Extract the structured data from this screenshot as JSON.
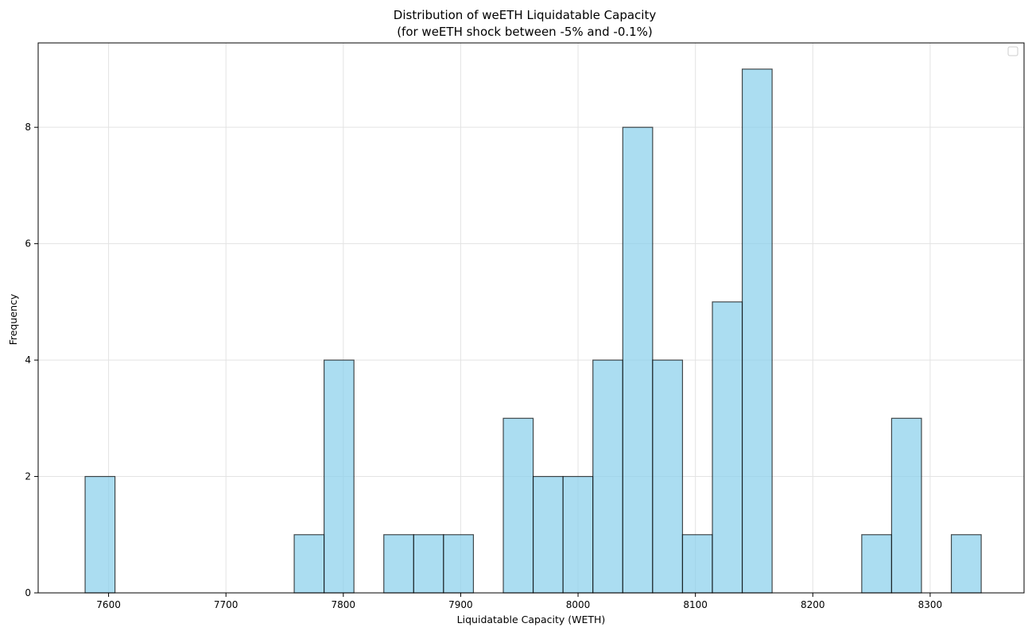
{
  "chart_data": {
    "type": "bar",
    "title": "Distribution of weETH Liquidatable Capacity",
    "subtitle": "(for weETH shock between -5% and -0.1%)",
    "xlabel": "Liquidatable Capacity (WETH)",
    "ylabel": "Frequency",
    "xlim": [
      7540,
      8380
    ],
    "ylim": [
      0,
      9.45
    ],
    "xticks": [
      7600,
      7700,
      7800,
      7900,
      8000,
      8100,
      8200,
      8300
    ],
    "yticks": [
      0,
      2,
      4,
      6,
      8
    ],
    "grid": true,
    "legend": "top-right",
    "bin_width": 25.45,
    "bins": [
      {
        "start": 7580.0,
        "count": 2
      },
      {
        "start": 7605.45,
        "count": 0
      },
      {
        "start": 7630.9,
        "count": 0
      },
      {
        "start": 7656.35,
        "count": 0
      },
      {
        "start": 7681.8,
        "count": 0
      },
      {
        "start": 7707.25,
        "count": 0
      },
      {
        "start": 7732.7,
        "count": 0
      },
      {
        "start": 7758.15,
        "count": 1
      },
      {
        "start": 7783.6,
        "count": 4
      },
      {
        "start": 7809.05,
        "count": 0
      },
      {
        "start": 7834.5,
        "count": 1
      },
      {
        "start": 7859.95,
        "count": 1
      },
      {
        "start": 7885.4,
        "count": 1
      },
      {
        "start": 7910.85,
        "count": 0
      },
      {
        "start": 7936.3,
        "count": 3
      },
      {
        "start": 7961.75,
        "count": 2
      },
      {
        "start": 7987.2,
        "count": 2
      },
      {
        "start": 8012.65,
        "count": 4
      },
      {
        "start": 8038.1,
        "count": 8
      },
      {
        "start": 8063.55,
        "count": 4
      },
      {
        "start": 8089.0,
        "count": 1
      },
      {
        "start": 8114.45,
        "count": 5
      },
      {
        "start": 8139.9,
        "count": 9
      },
      {
        "start": 8165.35,
        "count": 0
      },
      {
        "start": 8190.8,
        "count": 0
      },
      {
        "start": 8216.25,
        "count": 0
      },
      {
        "start": 8241.7,
        "count": 1
      },
      {
        "start": 8267.15,
        "count": 3
      },
      {
        "start": 8292.6,
        "count": 0
      },
      {
        "start": 8318.05,
        "count": 1
      }
    ],
    "colors": {
      "bar_fill": "#87CEEB",
      "bar_edge": "#000000",
      "grid": "#e3e3e3"
    }
  }
}
